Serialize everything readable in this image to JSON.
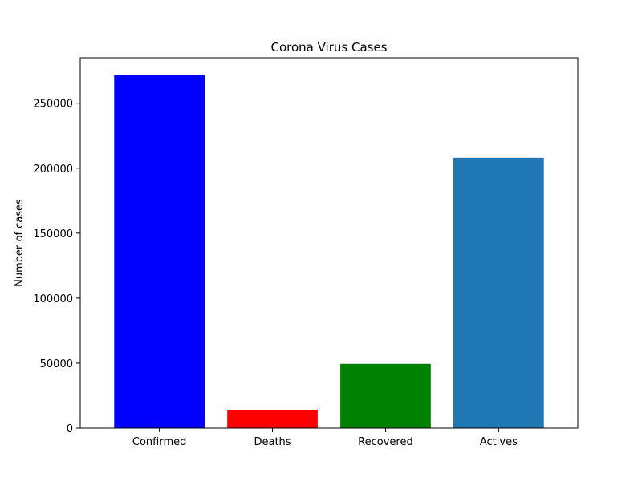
{
  "chart_data": {
    "type": "bar",
    "title": "Corona Virus Cases",
    "xlabel": "",
    "ylabel": "Number of cases",
    "categories": [
      "Confirmed",
      "Deaths",
      "Recovered",
      "Actives"
    ],
    "values": [
      271500,
      14200,
      49500,
      208000
    ],
    "colors": [
      "#0000ff",
      "#ff0000",
      "#008000",
      "#1f77b4"
    ],
    "ylim": [
      0,
      285000
    ],
    "yticks": [
      0,
      50000,
      100000,
      150000,
      200000,
      250000
    ],
    "grid": false,
    "legend": false
  }
}
